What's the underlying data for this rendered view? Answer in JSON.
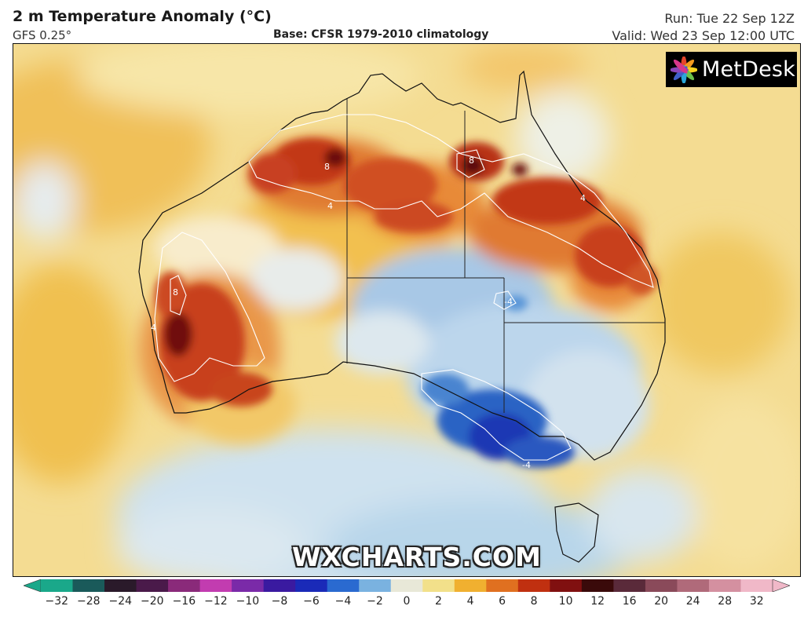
{
  "header": {
    "title": "2 m Temperature Anomaly (°C)",
    "model": "GFS 0.25°",
    "base": "Base: CFSR 1979-2010 climatology",
    "run": "Run: Tue 22 Sep 12Z",
    "valid": "Valid: Wed 23 Sep 12:00 UTC"
  },
  "logo": {
    "text": "MetDesk",
    "icon": "metdesk-flower-icon"
  },
  "watermark": "WXCHARTS.COM",
  "map": {
    "region": "Australia",
    "variable": "2 m temperature anomaly",
    "contour_labels": [
      "8",
      "8",
      "8",
      "4",
      "4",
      "4",
      "-4",
      "-4"
    ]
  },
  "legend": {
    "ticks": [
      "−32",
      "−28",
      "−24",
      "−20",
      "−16",
      "−12",
      "−10",
      "−8",
      "−6",
      "−4",
      "−2",
      "0",
      "2",
      "4",
      "6",
      "8",
      "10",
      "12",
      "16",
      "20",
      "24",
      "28",
      "32"
    ],
    "colors": [
      "#1aa88a",
      "#1a5a5a",
      "#2a1a2a",
      "#4a1a4a",
      "#8a2a7a",
      "#c23cb0",
      "#7a2aa8",
      "#3a1aa0",
      "#1a2ab8",
      "#2a6ad0",
      "#7ab2e0",
      "#e8e8d8",
      "#f2e08a",
      "#f0b030",
      "#e07020",
      "#c03010",
      "#801010",
      "#3a0a0a",
      "#5a2a3a",
      "#8a4a5a",
      "#b06a7a",
      "#d490a0",
      "#f0b8c8"
    ]
  }
}
